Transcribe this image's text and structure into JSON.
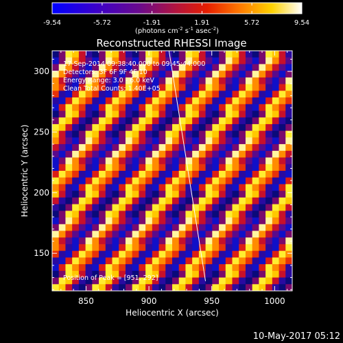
{
  "colorbar": {
    "ticks": [
      "-9.54",
      "-5.72",
      "-1.91",
      "1.91",
      "5.72",
      "9.54"
    ],
    "unit_label": "(photons cm",
    "unit_exp1": "-2",
    "unit_mid": " s",
    "unit_exp2": "-1",
    "unit_mid2": " asec",
    "unit_exp3": "-2",
    "unit_end": ")",
    "range": [
      -9.54,
      9.54
    ]
  },
  "chart_data": {
    "type": "heatmap",
    "title": "Reconstructed RHESSI Image",
    "xlabel": "Heliocentric X (arcsec)",
    "ylabel": "Heliocentric Y (arcsec)",
    "xlim": [
      823,
      1014
    ],
    "ylim": [
      119,
      317
    ],
    "xticks": [
      850,
      900,
      950,
      1000
    ],
    "yticks": [
      150,
      200,
      250,
      300
    ],
    "xtick_labels": [
      "850",
      "900",
      "950",
      "1000"
    ],
    "ytick_labels": [
      "150",
      "200",
      "250",
      "300"
    ],
    "annotations": {
      "line1": "17-Sep-2014 09:38:40.000 to 09:45:44.000",
      "line2": "Detectors: 3F 6F 9F 4F 10",
      "line3": "Energy Range: 3.0 - 6.0 keV",
      "line4": "Clean   Total Counts: 1.40E+05",
      "peak": "Position of Peak = [951, 292]"
    },
    "limb_line": [
      [
        916,
        317
      ],
      [
        945,
        127
      ]
    ],
    "pattern": "diagonal stripes",
    "grid": false
  },
  "footer": {
    "timestamp": "10-May-2017 05:12"
  }
}
